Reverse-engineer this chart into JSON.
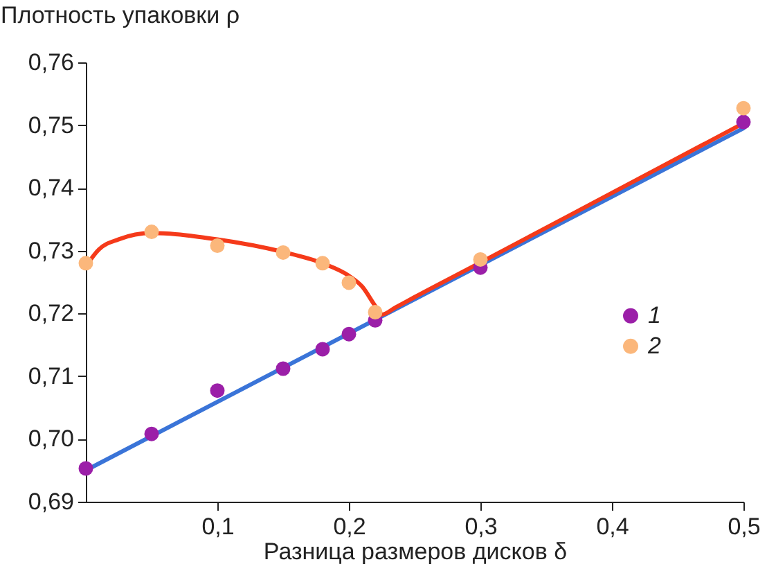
{
  "chart_data": {
    "type": "scatter",
    "xlabel": "Разница размеров дисков δ",
    "ylabel": "Плотность упаковки ρ",
    "xlim": [
      0,
      0.5
    ],
    "ylim": [
      0.69,
      0.76
    ],
    "xticks": [
      {
        "value": 0.1,
        "label": "0,1"
      },
      {
        "value": 0.2,
        "label": "0,2"
      },
      {
        "value": 0.3,
        "label": "0,3"
      },
      {
        "value": 0.4,
        "label": "0,4"
      },
      {
        "value": 0.5,
        "label": "0,5"
      }
    ],
    "yticks": [
      {
        "value": 0.69,
        "label": "0,69"
      },
      {
        "value": 0.7,
        "label": "0,70"
      },
      {
        "value": 0.71,
        "label": "0,71"
      },
      {
        "value": 0.72,
        "label": "0,72"
      },
      {
        "value": 0.73,
        "label": "0,73"
      },
      {
        "value": 0.74,
        "label": "0,74"
      },
      {
        "value": 0.75,
        "label": "0,75"
      },
      {
        "value": 0.76,
        "label": "0,76"
      }
    ],
    "grid": false,
    "legend": "right",
    "series": [
      {
        "name": "1",
        "color": "#9b1fa8",
        "marker": "circle",
        "x": [
          0,
          0.05,
          0.1,
          0.15,
          0.18,
          0.2,
          0.22,
          0.3,
          0.5
        ],
        "values": [
          0.6953,
          0.7008,
          0.7077,
          0.7112,
          0.7143,
          0.7167,
          0.7189,
          0.7273,
          0.7505
        ]
      },
      {
        "name": "2",
        "color": "#fbb77b",
        "marker": "circle",
        "x": [
          0,
          0.05,
          0.1,
          0.15,
          0.18,
          0.2,
          0.22,
          0.3,
          0.5
        ],
        "values": [
          0.728,
          0.733,
          0.7308,
          0.7297,
          0.728,
          0.7249,
          0.7202,
          0.7286,
          0.7527
        ]
      },
      {
        "type": "line",
        "color": "#3a74d8",
        "x": [
          0,
          0.5
        ],
        "values": [
          0.695,
          0.7495
        ]
      },
      {
        "type": "line",
        "color": "#f53a1a",
        "x": [
          0,
          0.01,
          0.025,
          0.05,
          0.1,
          0.15,
          0.18,
          0.2,
          0.21,
          0.22,
          0.225,
          0.235,
          0.25,
          0.3,
          0.4,
          0.5
        ],
        "values": [
          0.7275,
          0.7302,
          0.7318,
          0.7328,
          0.7318,
          0.7298,
          0.728,
          0.726,
          0.7243,
          0.7212,
          0.7198,
          0.7209,
          0.7226,
          0.7281,
          0.7392,
          0.7503
        ]
      }
    ]
  }
}
